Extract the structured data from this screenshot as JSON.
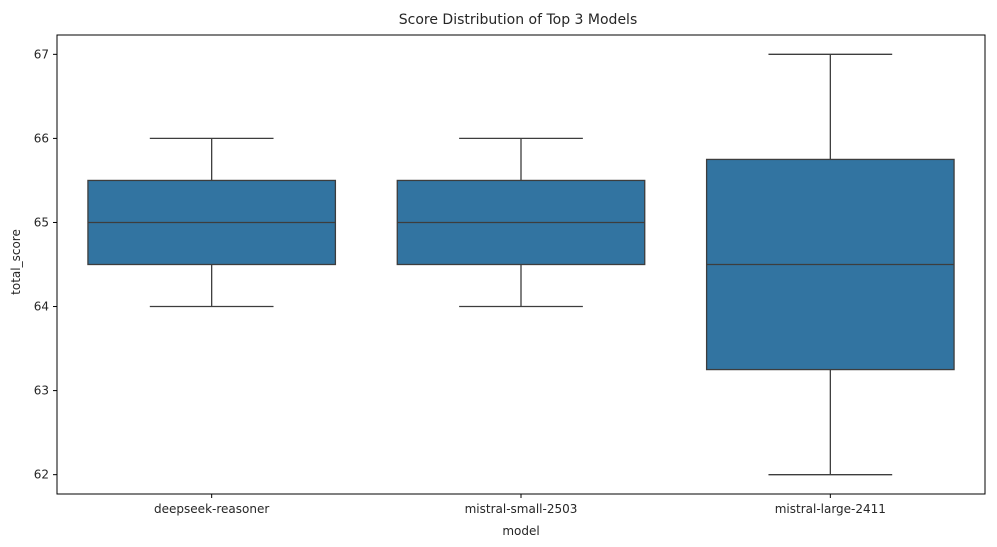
{
  "chart_data": {
    "type": "box",
    "title": "Score Distribution of Top 3 Models",
    "xlabel": "model",
    "ylabel": "total_score",
    "ylim": [
      61.77,
      67.23
    ],
    "yticks": [
      "62",
      "63",
      "64",
      "65",
      "66",
      "67"
    ],
    "grid": false,
    "box_color": "#3274a1",
    "line_color": "#3d3d3d",
    "categories": [
      "deepseek-reasoner",
      "mistral-small-2503",
      "mistral-large-2411"
    ],
    "boxes": [
      {
        "category": "deepseek-reasoner",
        "whisker_low": 64,
        "q1": 64.5,
        "median": 65,
        "q3": 65.5,
        "whisker_high": 66
      },
      {
        "category": "mistral-small-2503",
        "whisker_low": 64,
        "q1": 64.5,
        "median": 65,
        "q3": 65.5,
        "whisker_high": 66
      },
      {
        "category": "mistral-large-2411",
        "whisker_low": 62,
        "q1": 63.25,
        "median": 64.5,
        "q3": 65.75,
        "whisker_high": 67
      }
    ]
  }
}
